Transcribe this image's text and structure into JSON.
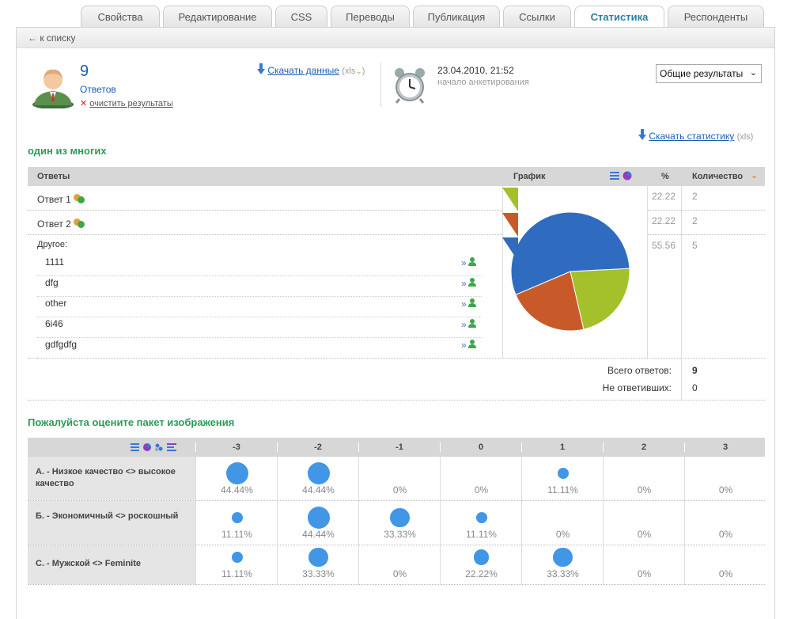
{
  "tabs": [
    "Свойства",
    "Редактирование",
    "CSS",
    "Переводы",
    "Публикация",
    "Ссылки",
    "Статистика",
    "Респонденты"
  ],
  "active_tab": "Статистика",
  "back_link": "к списку",
  "summary": {
    "count": "9",
    "count_label": "Ответов",
    "clear_label": "очистить результаты",
    "download_data": "Скачать данные",
    "xls_open": "(xls",
    "xls_close": ")",
    "date": "23.04.2010, 21:52",
    "date_label": "начало анкетирования",
    "select_value": "Общие результаты"
  },
  "download_stats": "Скачать статистику",
  "download_stats_suffix": "(xls)",
  "q1": {
    "title": "один из многих",
    "headers": {
      "answers": "Ответы",
      "chart": "График",
      "pct": "%",
      "qty": "Количество"
    },
    "rows": [
      {
        "label": "Ответ 1",
        "pct": "22.22",
        "qty": "2"
      },
      {
        "label": "Ответ 2",
        "pct": "22.22",
        "qty": "2"
      },
      {
        "label": "Другое:",
        "pct": "55.56",
        "qty": "5"
      }
    ],
    "other_items": [
      "1111",
      "dfg",
      "other",
      "6i46",
      "gdfgdfg"
    ],
    "other_link": "»",
    "total_label": "Всего ответов:",
    "total_value": "9",
    "noanswer_label": "Не ответивших:",
    "noanswer_value": "0"
  },
  "chart_data": {
    "type": "pie",
    "categories": [
      "Ответ 1",
      "Ответ 2",
      "Другое:"
    ],
    "values": [
      22.22,
      22.22,
      55.56
    ],
    "colors": [
      "#a4c02a",
      "#c85a2a",
      "#2f6cc0"
    ]
  },
  "q2": {
    "title": "Пожалуйста оцените пакет изображения",
    "columns": [
      "-3",
      "-2",
      "-1",
      "0",
      "1",
      "2",
      "3"
    ],
    "rows": [
      {
        "label": "А. - Низкое качество <> высокое качество",
        "values": [
          "44.44%",
          "44.44%",
          "0%",
          "0%",
          "11.11%",
          "0%",
          "0%"
        ],
        "sizes": [
          44.44,
          44.44,
          0,
          0,
          11.11,
          0,
          0
        ]
      },
      {
        "label": "Б. - Экономичный <> роскошный",
        "values": [
          "11.11%",
          "44.44%",
          "33.33%",
          "11.11%",
          "0%",
          "0%",
          "0%"
        ],
        "sizes": [
          11.11,
          44.44,
          33.33,
          11.11,
          0,
          0,
          0
        ]
      },
      {
        "label": "С. - Мужской <> Feminite",
        "values": [
          "11.11%",
          "33.33%",
          "0%",
          "22.22%",
          "33.33%",
          "0%",
          "0%"
        ],
        "sizes": [
          11.11,
          33.33,
          0,
          22.22,
          33.33,
          0,
          0
        ]
      }
    ]
  },
  "icons": {
    "back": "arrow-left-icon",
    "download": "download-arrow-icon",
    "clock": "alarm-clock-icon",
    "user": "user-avatar-icon",
    "delete": "red-x-icon",
    "person": "green-person-icon",
    "list": "list-view-icon",
    "pie": "pie-view-icon"
  }
}
